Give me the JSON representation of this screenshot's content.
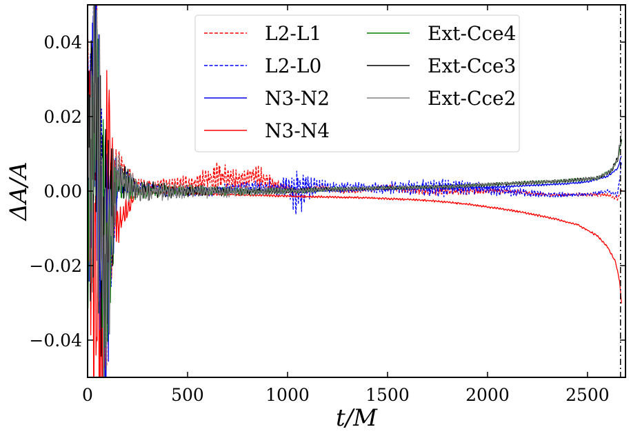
{
  "chart_data": {
    "type": "line",
    "title": "",
    "xlabel": "t/M",
    "ylabel": "ΔA/A",
    "xlim": [
      0,
      2690
    ],
    "ylim": [
      -0.05,
      0.05
    ],
    "x_ticks": [
      0,
      500,
      1000,
      1500,
      2000,
      2500
    ],
    "x_tick_labels": [
      "0",
      "500",
      "1000",
      "1500",
      "2000",
      "2500"
    ],
    "y_ticks": [
      -0.04,
      -0.02,
      0.0,
      0.02,
      0.04
    ],
    "y_tick_labels": [
      "−0.04",
      "−0.02",
      "0.00",
      "0.02",
      "0.04"
    ],
    "grid": false,
    "legend_position": "top-center",
    "legend_columns": 2,
    "vertical_marker": {
      "x": 2665,
      "style": "dash-dot",
      "color": "#000000"
    },
    "series": [
      {
        "name": "L2-L1",
        "color": "#ff0000",
        "dash": "dashed",
        "x": [
          0,
          40,
          80,
          150,
          250,
          400,
          550,
          650,
          750,
          850,
          950,
          1050,
          1150,
          1300,
          1500,
          1700,
          1900,
          2100,
          2300,
          2500,
          2600,
          2650,
          2670
        ],
        "y": [
          0.0,
          0.03,
          -0.03,
          0.006,
          0.002,
          0.001,
          0.002,
          0.004,
          0.003,
          0.004,
          0.001,
          0.0,
          0.001,
          0.0,
          0.001,
          0.0,
          0.0,
          0.0,
          -0.001,
          -0.001,
          -0.001,
          -0.002,
          0.0
        ],
        "noise": [
          0.045,
          0.045,
          0.045,
          0.006,
          0.0018,
          0.0025,
          0.003,
          0.004,
          0.003,
          0.0035,
          0.002,
          0.0012,
          0.001,
          0.0008,
          0.001,
          0.0012,
          0.001,
          0.0008,
          0.0006,
          0.0005,
          0.0005,
          0.0005,
          0.0005
        ]
      },
      {
        "name": "L2-L0",
        "color": "#0000ff",
        "dash": "dashed",
        "x": [
          0,
          40,
          80,
          150,
          250,
          400,
          600,
          800,
          1000,
          1050,
          1100,
          1200,
          1400,
          1600,
          1700,
          1900,
          2100,
          2300,
          2500,
          2600,
          2650,
          2670
        ],
        "y": [
          0.0,
          0.03,
          -0.03,
          0.004,
          0.001,
          0.0,
          0.0,
          0.001,
          0.001,
          0.0,
          0.001,
          0.001,
          0.001,
          0.001,
          0.001,
          0.001,
          0.0,
          -0.001,
          -0.001,
          0.0,
          -0.001,
          0.007
        ],
        "noise": [
          0.045,
          0.045,
          0.045,
          0.005,
          0.0015,
          0.0015,
          0.0015,
          0.0015,
          0.003,
          0.008,
          0.004,
          0.0015,
          0.0015,
          0.002,
          0.003,
          0.002,
          0.0015,
          0.0008,
          0.0006,
          0.0005,
          0.0005,
          0.001
        ]
      },
      {
        "name": "N3-N2",
        "color": "#0000ee",
        "dash": "solid",
        "x": [
          0,
          40,
          80,
          150,
          250,
          500,
          800,
          1100,
          1400,
          1700,
          2000,
          2200,
          2400,
          2500,
          2600,
          2650,
          2670
        ],
        "y": [
          0.0,
          0.03,
          -0.03,
          0.002,
          0.0,
          0.0,
          0.0,
          0.0,
          0.0005,
          0.0008,
          0.001,
          0.0015,
          0.002,
          0.0025,
          0.004,
          0.006,
          0.0095
        ],
        "noise": [
          0.045,
          0.045,
          0.045,
          0.003,
          0.0008,
          0.0006,
          0.0005,
          0.0004,
          0.0004,
          0.0004,
          0.0003,
          0.0003,
          0.0003,
          0.0003,
          0.0003,
          0.0003,
          0.0003
        ]
      },
      {
        "name": "N3-N4",
        "color": "#ff0000",
        "dash": "solid",
        "x": [
          0,
          40,
          80,
          100,
          150,
          250,
          500,
          800,
          1100,
          1400,
          1700,
          1900,
          2100,
          2300,
          2450,
          2550,
          2600,
          2640,
          2660,
          2670
        ],
        "y": [
          0.0,
          -0.03,
          -0.04,
          0.02,
          -0.01,
          0.0,
          -0.0005,
          -0.001,
          -0.0015,
          -0.0018,
          -0.0025,
          -0.0035,
          -0.005,
          -0.007,
          -0.009,
          -0.012,
          -0.015,
          -0.019,
          -0.024,
          -0.03
        ],
        "noise": [
          0.045,
          0.045,
          0.045,
          0.03,
          0.006,
          0.0008,
          0.0005,
          0.0004,
          0.0003,
          0.0003,
          0.0003,
          0.0003,
          0.0003,
          0.0003,
          0.0003,
          0.0003,
          0.0003,
          0.0003,
          0.0003,
          0.0003
        ]
      },
      {
        "name": "Ext-Cce4",
        "color": "#008000",
        "dash": "solid",
        "x": [
          0,
          40,
          80,
          150,
          250,
          400,
          600,
          800,
          1000,
          1200,
          1500,
          1800,
          2100,
          2400,
          2550,
          2620,
          2650,
          2670
        ],
        "y": [
          0.0,
          0.025,
          -0.02,
          0.003,
          0.0,
          0.0,
          0.0,
          0.0,
          0.0,
          0.0005,
          0.0008,
          0.0012,
          0.002,
          0.0028,
          0.0035,
          0.0055,
          0.0085,
          0.014
        ],
        "noise": [
          0.04,
          0.04,
          0.04,
          0.005,
          0.0025,
          0.002,
          0.0015,
          0.001,
          0.0008,
          0.0006,
          0.0005,
          0.0005,
          0.0005,
          0.0005,
          0.0005,
          0.0006,
          0.0008,
          0.001
        ]
      },
      {
        "name": "Ext-Cce3",
        "color": "#000000",
        "dash": "solid",
        "x": [
          0,
          40,
          80,
          150,
          250,
          400,
          600,
          800,
          1000,
          1200,
          1500,
          1800,
          2100,
          2400,
          2550,
          2620,
          2650,
          2670
        ],
        "y": [
          0.0,
          0.025,
          -0.02,
          0.004,
          0.0,
          0.0,
          0.0,
          0.0,
          0.0,
          0.0005,
          0.0008,
          0.0012,
          0.002,
          0.0028,
          0.0035,
          0.0055,
          0.0085,
          0.014
        ],
        "noise": [
          0.045,
          0.045,
          0.045,
          0.006,
          0.003,
          0.0022,
          0.0015,
          0.001,
          0.0008,
          0.0006,
          0.0005,
          0.0005,
          0.0005,
          0.0005,
          0.0005,
          0.0006,
          0.0008,
          0.001
        ]
      },
      {
        "name": "Ext-Cce2",
        "color": "#808080",
        "dash": "solid",
        "x": [
          0,
          40,
          80,
          150,
          250,
          400,
          600,
          800,
          1000,
          1200,
          1500,
          1800,
          2100,
          2400,
          2550,
          2620,
          2650,
          2670
        ],
        "y": [
          0.0,
          0.025,
          -0.025,
          0.004,
          0.0,
          0.0,
          0.0,
          0.0,
          0.0,
          0.0005,
          0.0008,
          0.0012,
          0.002,
          0.0028,
          0.0035,
          0.0055,
          0.0085,
          0.016
        ],
        "noise": [
          0.045,
          0.045,
          0.045,
          0.008,
          0.003,
          0.0025,
          0.002,
          0.0015,
          0.001,
          0.0008,
          0.0006,
          0.0005,
          0.0005,
          0.0005,
          0.0005,
          0.0006,
          0.0008,
          0.001
        ]
      }
    ]
  }
}
